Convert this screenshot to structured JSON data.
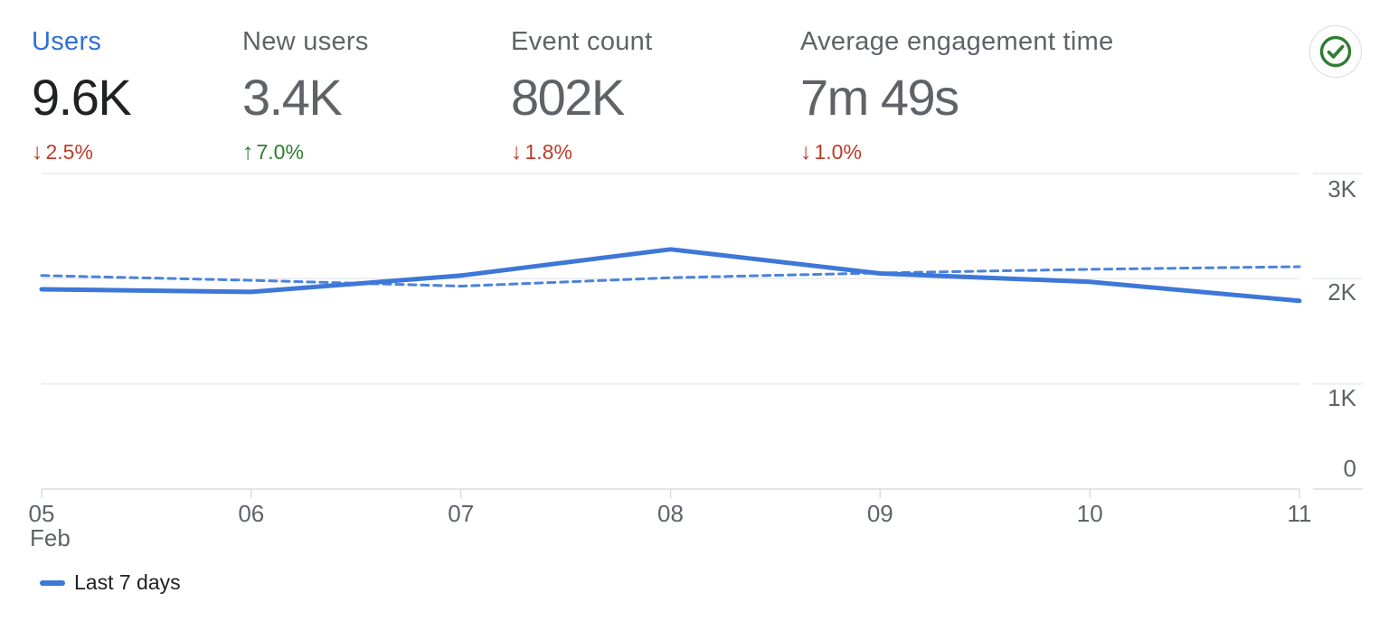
{
  "metrics": {
    "cards": [
      {
        "label": "Users",
        "value": "9.6K",
        "arrow": "↓",
        "delta": "2.5%",
        "direction": "down",
        "selected": true
      },
      {
        "label": "New users",
        "value": "3.4K",
        "arrow": "↑",
        "delta": "7.0%",
        "direction": "up",
        "selected": false
      },
      {
        "label": "Event count",
        "value": "802K",
        "arrow": "↓",
        "delta": "1.8%",
        "direction": "down",
        "selected": false
      },
      {
        "label": "Average engagement time",
        "value": "7m 49s",
        "arrow": "↓",
        "delta": "1.0%",
        "direction": "down",
        "selected": false
      }
    ]
  },
  "quality_badge": {
    "icon": "check-circle"
  },
  "chart_data": {
    "type": "line",
    "x": [
      "05",
      "06",
      "07",
      "08",
      "09",
      "10",
      "11"
    ],
    "x_month_label": "Feb",
    "y_ticks": [
      "3K",
      "2K",
      "1K",
      "0"
    ],
    "ylim": [
      0,
      3000
    ],
    "grid": "horizontal",
    "legend_position": "bottom-left",
    "series": [
      {
        "name": "Last 7 days",
        "style": "solid",
        "color": "#3d77d8",
        "values": [
          1900,
          1875,
          2030,
          2280,
          2050,
          1970,
          1790
        ]
      },
      {
        "name": "",
        "style": "dashed",
        "color": "#4a82dd",
        "values": [
          2030,
          1985,
          1930,
          2010,
          2055,
          2090,
          2115
        ]
      }
    ]
  },
  "legend": {
    "label": "Last 7 days"
  },
  "colors": {
    "accent_blue": "#2e6fd8",
    "text_dark": "#202124",
    "text_muted": "#5f6368",
    "negative_red": "#c03a2b",
    "positive_green": "#2e7d32",
    "check_green": "#2e7d32",
    "grid": "#e8eaed"
  }
}
